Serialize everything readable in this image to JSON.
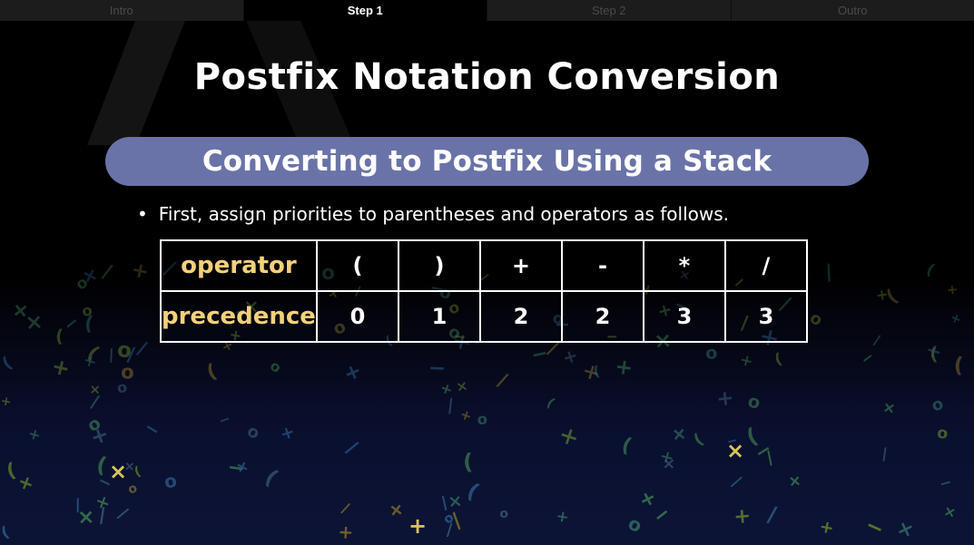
{
  "tabs": [
    {
      "label": "Intro",
      "active": false
    },
    {
      "label": "Step 1",
      "active": true
    },
    {
      "label": "Step 2",
      "active": false
    },
    {
      "label": "Outro",
      "active": false
    }
  ],
  "title": "Postfix Notation Conversion",
  "banner": "Converting to Postfix Using a Stack",
  "bullet": {
    "marker": "•",
    "text": "First, assign priorities to parentheses and operators as follows."
  },
  "table": {
    "row_headers": [
      "operator",
      "precedence"
    ],
    "operators": [
      "(",
      ")",
      "+",
      "-",
      "*",
      "/"
    ],
    "precedences": [
      "0",
      "1",
      "2",
      "2",
      "3",
      "3"
    ]
  },
  "colors": {
    "background": "#000000",
    "banner": "#6a73a8",
    "table_header_text": "#f3d07b",
    "tab_inactive": "#1c1c1c",
    "tab_active": "#000000"
  }
}
